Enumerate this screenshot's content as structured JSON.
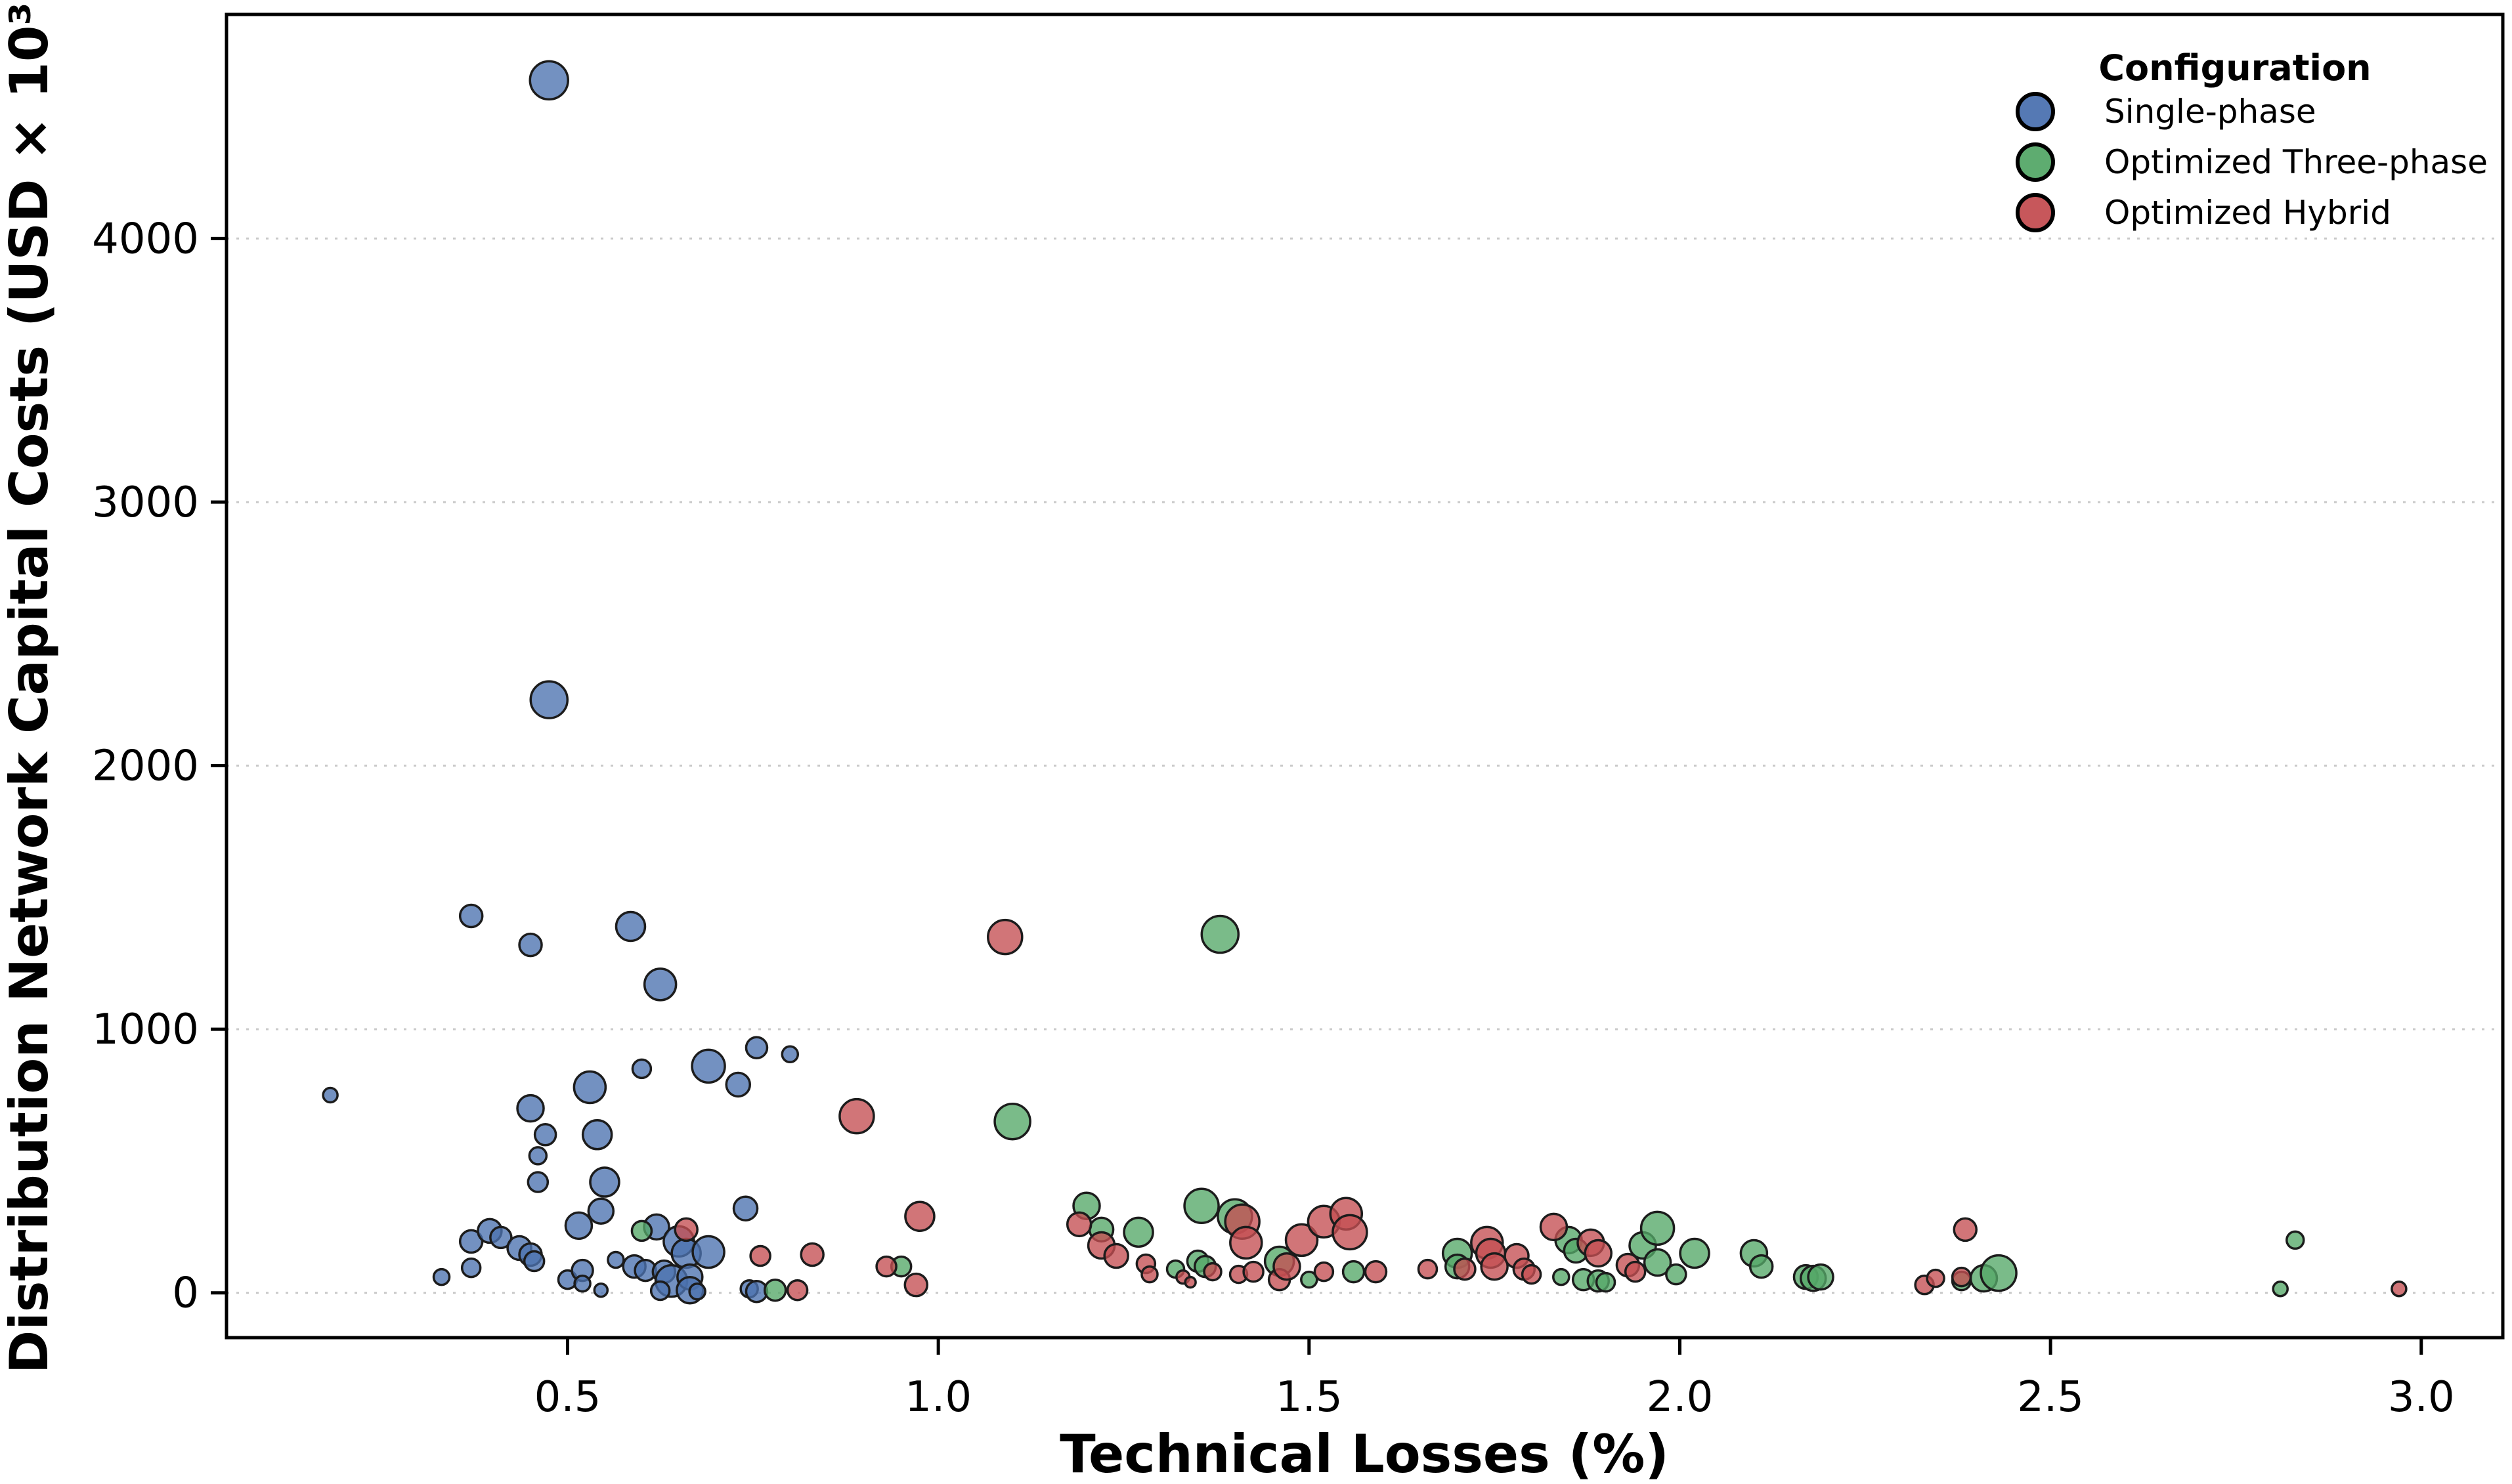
{
  "figure": {
    "kind": "bubble-scatter",
    "background": "#ffffff",
    "frame_color": "#000000",
    "grid_color": "#c9c9c9",
    "point_edge_color": "#1c1c1c",
    "point_fill_opacity": 0.78
  },
  "legend": {
    "title": "Configuration",
    "items": [
      {
        "label": "Single-phase",
        "color": "#4C72B0"
      },
      {
        "label": "Optimized Three-phase",
        "color": "#55A868"
      },
      {
        "label": "Optimized Hybrid",
        "color": "#C44E52"
      }
    ]
  },
  "chart_data": {
    "type": "scatter",
    "title": "",
    "xlabel": "Technical Losses (%)",
    "ylabel": "Distribution Network Capital Costs (USD × 10³)",
    "xlim": [
      0.04,
      3.11
    ],
    "ylim": [
      -170,
      4850
    ],
    "xticks": [
      0.5,
      1.0,
      1.5,
      2.0,
      2.5,
      3.0
    ],
    "xtick_labels": [
      "0.5",
      "1.0",
      "1.5",
      "2.0",
      "2.5",
      "3.0"
    ],
    "yticks": [
      0,
      1000,
      2000,
      3000,
      4000
    ],
    "ytick_labels": [
      "0",
      "1000",
      "2000",
      "3000",
      "4000"
    ],
    "grid": "horizontal-dotted",
    "legend_position": "upper right",
    "point_format": "[x_percent, y_usd_thousand, marker_radius_px]",
    "series": [
      {
        "name": "Single-phase",
        "color": "#4C72B0",
        "points": [
          [
            0.18,
            750,
            11
          ],
          [
            0.33,
            60,
            12
          ],
          [
            0.37,
            95,
            14
          ],
          [
            0.37,
            195,
            17
          ],
          [
            0.395,
            235,
            18
          ],
          [
            0.41,
            210,
            16
          ],
          [
            0.435,
            170,
            18
          ],
          [
            0.45,
            145,
            17
          ],
          [
            0.455,
            120,
            15
          ],
          [
            0.37,
            1430,
            17
          ],
          [
            0.45,
            1320,
            17
          ],
          [
            0.475,
            4600,
            29
          ],
          [
            0.475,
            2250,
            28
          ],
          [
            0.45,
            700,
            20
          ],
          [
            0.47,
            600,
            16
          ],
          [
            0.46,
            520,
            13
          ],
          [
            0.46,
            420,
            15
          ],
          [
            0.5,
            50,
            14
          ],
          [
            0.52,
            85,
            16
          ],
          [
            0.52,
            35,
            12
          ],
          [
            0.545,
            10,
            10
          ],
          [
            0.515,
            255,
            20
          ],
          [
            0.545,
            310,
            19
          ],
          [
            0.565,
            125,
            12
          ],
          [
            0.59,
            100,
            17
          ],
          [
            0.605,
            85,
            16
          ],
          [
            0.53,
            780,
            24
          ],
          [
            0.585,
            1390,
            22
          ],
          [
            0.625,
            1170,
            24
          ],
          [
            0.6,
            850,
            14
          ],
          [
            0.54,
            600,
            22
          ],
          [
            0.55,
            420,
            22
          ],
          [
            0.62,
            250,
            19
          ],
          [
            0.65,
            195,
            23
          ],
          [
            0.66,
            150,
            22
          ],
          [
            0.63,
            80,
            17
          ],
          [
            0.64,
            45,
            24
          ],
          [
            0.665,
            60,
            19
          ],
          [
            0.665,
            10,
            20
          ],
          [
            0.625,
            8,
            14
          ],
          [
            0.675,
            5,
            12
          ],
          [
            0.69,
            155,
            24
          ],
          [
            0.69,
            860,
            25
          ],
          [
            0.73,
            790,
            18
          ],
          [
            0.74,
            320,
            18
          ],
          [
            0.745,
            15,
            13
          ],
          [
            0.755,
            5,
            16
          ],
          [
            0.755,
            930,
            16
          ],
          [
            0.8,
            905,
            12
          ]
        ]
      },
      {
        "name": "Optimized Three-phase",
        "color": "#55A868",
        "points": [
          [
            0.6,
            235,
            15
          ],
          [
            0.78,
            10,
            16
          ],
          [
            0.95,
            100,
            15
          ],
          [
            1.1,
            650,
            27
          ],
          [
            1.38,
            1360,
            28
          ],
          [
            1.2,
            330,
            20
          ],
          [
            1.22,
            240,
            18
          ],
          [
            1.27,
            230,
            22
          ],
          [
            1.32,
            90,
            13
          ],
          [
            1.35,
            120,
            16
          ],
          [
            1.36,
            100,
            16
          ],
          [
            1.355,
            330,
            26
          ],
          [
            1.4,
            290,
            26
          ],
          [
            1.46,
            120,
            22
          ],
          [
            1.5,
            50,
            12
          ],
          [
            1.56,
            80,
            16
          ],
          [
            1.7,
            150,
            22
          ],
          [
            1.7,
            100,
            18
          ],
          [
            1.84,
            60,
            12
          ],
          [
            1.85,
            200,
            20
          ],
          [
            1.86,
            160,
            18
          ],
          [
            1.87,
            50,
            16
          ],
          [
            1.89,
            45,
            16
          ],
          [
            1.9,
            40,
            14
          ],
          [
            1.95,
            180,
            20
          ],
          [
            1.97,
            245,
            25
          ],
          [
            1.97,
            115,
            20
          ],
          [
            1.995,
            70,
            15
          ],
          [
            2.02,
            150,
            22
          ],
          [
            2.1,
            150,
            20
          ],
          [
            2.11,
            100,
            17
          ],
          [
            2.17,
            60,
            18
          ],
          [
            2.18,
            55,
            19
          ],
          [
            2.19,
            60,
            19
          ],
          [
            2.38,
            45,
            14
          ],
          [
            2.41,
            55,
            20
          ],
          [
            2.43,
            75,
            27
          ],
          [
            2.81,
            15,
            11
          ],
          [
            2.83,
            200,
            13
          ]
        ]
      },
      {
        "name": "Optimized Hybrid",
        "color": "#C44E52",
        "points": [
          [
            0.66,
            240,
            17
          ],
          [
            0.76,
            140,
            15
          ],
          [
            0.81,
            10,
            15
          ],
          [
            0.83,
            145,
            17
          ],
          [
            0.89,
            670,
            26
          ],
          [
            0.93,
            100,
            15
          ],
          [
            0.97,
            30,
            17
          ],
          [
            0.975,
            290,
            22
          ],
          [
            1.09,
            1350,
            26
          ],
          [
            1.19,
            260,
            18
          ],
          [
            1.22,
            180,
            20
          ],
          [
            1.24,
            140,
            18
          ],
          [
            1.28,
            110,
            14
          ],
          [
            1.285,
            70,
            12
          ],
          [
            1.33,
            60,
            10
          ],
          [
            1.34,
            40,
            8
          ],
          [
            1.37,
            80,
            13
          ],
          [
            1.405,
            70,
            13
          ],
          [
            1.41,
            270,
            26
          ],
          [
            1.415,
            190,
            24
          ],
          [
            1.425,
            80,
            15
          ],
          [
            1.46,
            50,
            16
          ],
          [
            1.47,
            100,
            20
          ],
          [
            1.49,
            200,
            24
          ],
          [
            1.52,
            270,
            24
          ],
          [
            1.52,
            80,
            14
          ],
          [
            1.55,
            300,
            24
          ],
          [
            1.555,
            230,
            26
          ],
          [
            1.59,
            80,
            16
          ],
          [
            1.66,
            90,
            14
          ],
          [
            1.71,
            90,
            16
          ],
          [
            1.74,
            190,
            24
          ],
          [
            1.745,
            150,
            22
          ],
          [
            1.75,
            100,
            20
          ],
          [
            1.78,
            140,
            18
          ],
          [
            1.79,
            90,
            16
          ],
          [
            1.8,
            70,
            14
          ],
          [
            1.83,
            250,
            20
          ],
          [
            1.88,
            190,
            20
          ],
          [
            1.89,
            150,
            20
          ],
          [
            1.93,
            105,
            17
          ],
          [
            1.94,
            80,
            15
          ],
          [
            2.33,
            30,
            14
          ],
          [
            2.345,
            55,
            13
          ],
          [
            2.38,
            60,
            14
          ],
          [
            2.385,
            240,
            17
          ],
          [
            2.97,
            15,
            11
          ]
        ]
      }
    ]
  }
}
